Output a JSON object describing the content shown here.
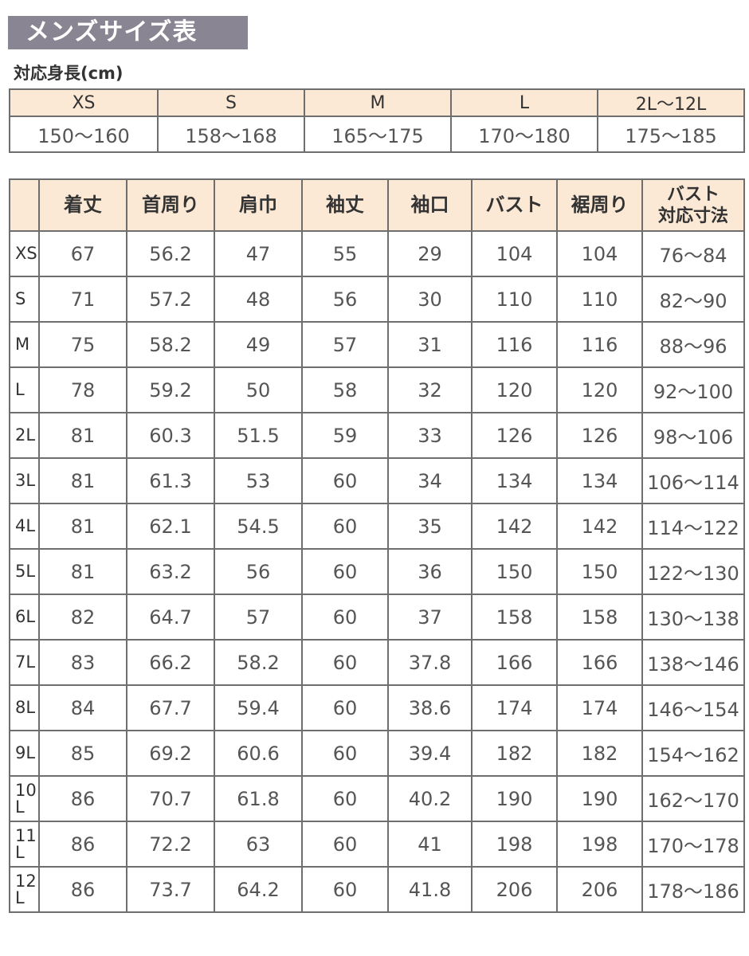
{
  "title": "メンズサイズ表",
  "height_table": {
    "label": "対応身長(cm)",
    "sizes": [
      "XS",
      "S",
      "M",
      "L",
      "2L〜12L"
    ],
    "ranges": [
      "150〜160",
      "158〜168",
      "165〜175",
      "170〜180",
      "175〜185"
    ]
  },
  "size_table": {
    "headers": [
      "",
      "着丈",
      "首周り",
      "肩巾",
      "袖丈",
      "袖口",
      "バスト",
      "裾周り",
      "バスト\n対応寸法"
    ],
    "rows": [
      [
        "XS",
        "67",
        "56.2",
        "47",
        "55",
        "29",
        "104",
        "104",
        "76〜84"
      ],
      [
        "S",
        "71",
        "57.2",
        "48",
        "56",
        "30",
        "110",
        "110",
        "82〜90"
      ],
      [
        "M",
        "75",
        "58.2",
        "49",
        "57",
        "31",
        "116",
        "116",
        "88〜96"
      ],
      [
        "L",
        "78",
        "59.2",
        "50",
        "58",
        "32",
        "120",
        "120",
        "92〜100"
      ],
      [
        "2L",
        "81",
        "60.3",
        "51.5",
        "59",
        "33",
        "126",
        "126",
        "98〜106"
      ],
      [
        "3L",
        "81",
        "61.3",
        "53",
        "60",
        "34",
        "134",
        "134",
        "106〜114"
      ],
      [
        "4L",
        "81",
        "62.1",
        "54.5",
        "60",
        "35",
        "142",
        "142",
        "114〜122"
      ],
      [
        "5L",
        "81",
        "63.2",
        "56",
        "60",
        "36",
        "150",
        "150",
        "122〜130"
      ],
      [
        "6L",
        "82",
        "64.7",
        "57",
        "60",
        "37",
        "158",
        "158",
        "130〜138"
      ],
      [
        "7L",
        "83",
        "66.2",
        "58.2",
        "60",
        "37.8",
        "166",
        "166",
        "138〜146"
      ],
      [
        "8L",
        "84",
        "67.7",
        "59.4",
        "60",
        "38.6",
        "174",
        "174",
        "146〜154"
      ],
      [
        "9L",
        "85",
        "69.2",
        "60.6",
        "60",
        "39.4",
        "182",
        "182",
        "154〜162"
      ],
      [
        "10L",
        "86",
        "70.7",
        "61.8",
        "60",
        "40.2",
        "190",
        "190",
        "162〜170"
      ],
      [
        "11L",
        "86",
        "72.2",
        "63",
        "60",
        "41",
        "198",
        "198",
        "170〜178"
      ],
      [
        "12L",
        "86",
        "73.7",
        "64.2",
        "60",
        "41.8",
        "206",
        "206",
        "178〜186"
      ]
    ]
  },
  "colors": {
    "title_bg": "#8a8592",
    "header_bg": "#fbe9d6",
    "border": "#6e6e6e"
  }
}
